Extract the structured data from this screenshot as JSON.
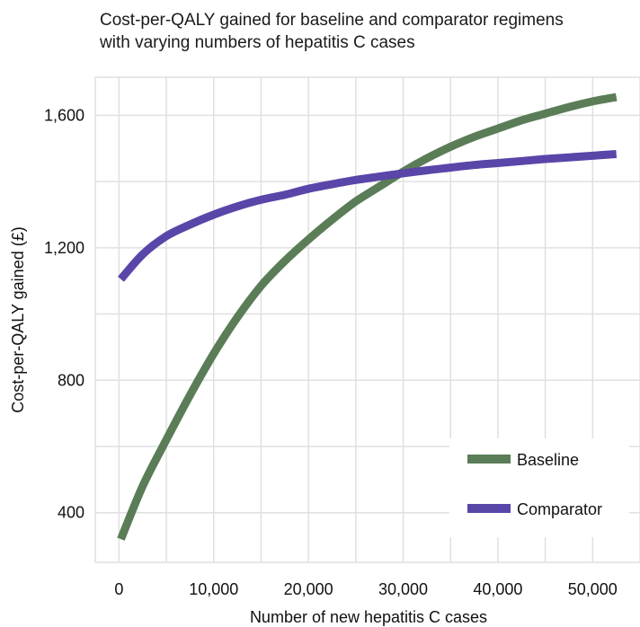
{
  "chart_data": {
    "type": "line",
    "title_lines": [
      "Cost-per-QALY gained for baseline and comparator regimens",
      "with varying numbers of hepatitis C cases"
    ],
    "xlabel": "Number of new hepatitis C cases",
    "ylabel": "Cost-per-QALY gained (£)",
    "x_ticks": [
      "0",
      "10,000",
      "20,000",
      "30,000",
      "40,000",
      "50,000"
    ],
    "y_ticks": [
      "400",
      "800",
      "1,200",
      "1,600"
    ],
    "xlim": [
      -2500,
      55000
    ],
    "ylim": [
      250,
      1715
    ],
    "grid": true,
    "legend_position": "bottom-right",
    "series": [
      {
        "name": "Baseline",
        "color": "#5a7d57",
        "x": [
          200,
          2500,
          5000,
          7500,
          10000,
          12500,
          15000,
          17500,
          20000,
          22500,
          25000,
          27500,
          30000,
          32500,
          35000,
          37500,
          40000,
          42500,
          45000,
          47500,
          50000,
          52500
        ],
        "y": [
          320,
          480,
          620,
          755,
          880,
          990,
          1085,
          1160,
          1225,
          1285,
          1340,
          1385,
          1430,
          1470,
          1505,
          1535,
          1560,
          1585,
          1605,
          1625,
          1642,
          1655
        ]
      },
      {
        "name": "Comparator",
        "color": "#5a45a8",
        "x": [
          200,
          2500,
          5000,
          7500,
          10000,
          12500,
          15000,
          17500,
          20000,
          22500,
          25000,
          27500,
          30000,
          32500,
          35000,
          37500,
          40000,
          42500,
          45000,
          47500,
          50000,
          52500
        ],
        "y": [
          1105,
          1180,
          1235,
          1270,
          1300,
          1325,
          1345,
          1360,
          1378,
          1392,
          1405,
          1415,
          1425,
          1434,
          1442,
          1450,
          1456,
          1462,
          1468,
          1473,
          1478,
          1483
        ]
      }
    ]
  }
}
